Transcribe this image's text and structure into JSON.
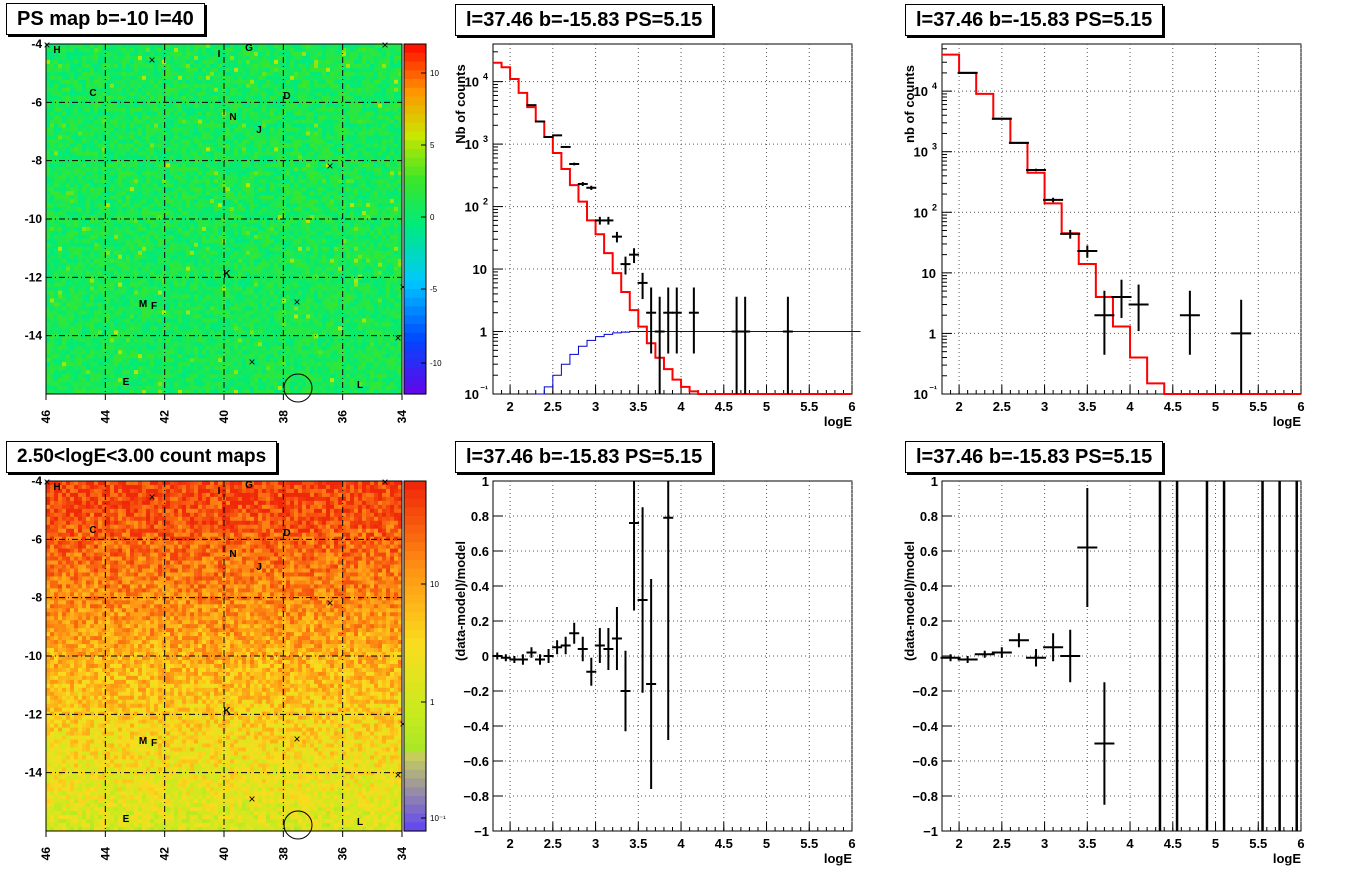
{
  "titles": {
    "map_top": "PS map b=-10 l=40",
    "map_bottom": "2.50<logE<3.00 count maps",
    "spec_left_top": "l=37.46 b=-15.83 PS=5.15",
    "spec_right_top": "l=37.46 b=-15.83 PS=5.15",
    "ratio_left": "l=37.46 b=-15.83 PS=5.15",
    "ratio_right": "l=37.46 b=-15.83 PS=5.15"
  },
  "maps": {
    "x_ticks": [
      "46",
      "44",
      "42",
      "40",
      "38",
      "36",
      "34"
    ],
    "y_ticks": [
      "-4",
      "-6",
      "-8",
      "-10",
      "-12",
      "-14"
    ],
    "source_labels": [
      "H",
      "G",
      "I",
      "C",
      "D",
      "N",
      "J",
      "K",
      "M",
      "F",
      "E",
      "L"
    ],
    "ps_colorbar_ticks": [
      "10",
      "5",
      "0",
      "-5",
      "-10"
    ],
    "count_colorbar_ticks": [
      "10",
      "1",
      "10⁻¹"
    ]
  },
  "axes": {
    "logE": "logE",
    "nb_counts": "Nb of counts",
    "nb_counts_lower": "nb of counts",
    "ratio": "(data-model)/model"
  },
  "colors": {
    "model": "#ff0000",
    "model_right_data": "#0000cc",
    "data": "#000000"
  },
  "chart_data": [
    {
      "type": "heatmap",
      "title": "PS map b=-10 l=40",
      "xlim": [
        46,
        34
      ],
      "ylim": [
        -16,
        -4
      ],
      "colorbar": [
        -12,
        12
      ]
    },
    {
      "type": "heatmap",
      "title": "2.50<logE<3.00 count maps",
      "xlim": [
        46,
        34
      ],
      "ylim": [
        -16,
        -4
      ],
      "colorbar_log": true
    },
    {
      "type": "line",
      "title": "l=37.46 b=-15.83 PS=5.15",
      "xlabel": "logE",
      "ylabel": "Nb of counts",
      "xlim": [
        1.8,
        6
      ],
      "ylim_log": [
        0.1,
        40000
      ],
      "series": [
        {
          "name": "model",
          "x": [
            1.8,
            1.9,
            2.0,
            2.1,
            2.2,
            2.3,
            2.4,
            2.5,
            2.6,
            2.7,
            2.8,
            2.9,
            3.0,
            3.1,
            3.2,
            3.3,
            3.4,
            3.5,
            3.6,
            3.7,
            3.8,
            3.9,
            4.0,
            4.1,
            4.2,
            4.3
          ],
          "y": [
            20000,
            17000,
            11000,
            6600,
            3900,
            2300,
            1300,
            720,
            400,
            220,
            120,
            60,
            36,
            18,
            8.6,
            4.3,
            2.2,
            1.2,
            0.65,
            0.38,
            0.25,
            0.17,
            0.13,
            0.11,
            0.1,
            0.1
          ]
        },
        {
          "name": "data",
          "x": [
            2.25,
            2.35,
            2.45,
            2.55,
            2.65,
            2.75,
            2.85,
            2.95,
            3.05,
            3.15,
            3.25,
            3.35,
            3.45,
            3.55,
            3.65,
            3.75,
            3.85,
            3.95,
            4.15,
            4.65,
            4.75,
            5.25
          ],
          "y": [
            4200,
            2300,
            1300,
            1380,
            900,
            480,
            230,
            200,
            60,
            60,
            33,
            12,
            17,
            6,
            2,
            1,
            2,
            2,
            2,
            1,
            1,
            1
          ]
        },
        {
          "name": "exposure",
          "x": [
            2.3,
            2.4,
            2.5,
            2.6,
            2.7,
            2.8,
            2.9,
            3.0,
            3.1,
            3.2,
            3.3,
            3.4,
            3.5,
            6.0
          ],
          "y": [
            0.1,
            0.13,
            0.2,
            0.3,
            0.43,
            0.58,
            0.72,
            0.83,
            0.9,
            0.95,
            0.98,
            1.0,
            1.0,
            1.0
          ]
        }
      ]
    },
    {
      "type": "line",
      "title": "l=37.46 b=-15.83 PS=5.15",
      "xlabel": "logE",
      "ylabel": "nb of counts",
      "xlim": [
        1.8,
        6
      ],
      "ylim_log": [
        0.1,
        60000
      ],
      "series": [
        {
          "name": "model",
          "x": [
            1.8,
            2.0,
            2.2,
            2.4,
            2.6,
            2.8,
            3.0,
            3.2,
            3.4,
            3.6,
            3.8,
            4.0,
            4.2,
            4.4
          ],
          "y": [
            40000,
            20000,
            9000,
            3500,
            1400,
            450,
            140,
            45,
            14,
            4,
            1.3,
            0.4,
            0.15,
            0.1
          ]
        },
        {
          "name": "data",
          "x": [
            2.1,
            2.5,
            2.7,
            2.9,
            3.1,
            3.3,
            3.5,
            3.7,
            3.9,
            4.1,
            4.7,
            5.3
          ],
          "y": [
            20000,
            3500,
            1400,
            500,
            160,
            44,
            23,
            2,
            4,
            3,
            2,
            1
          ]
        }
      ]
    },
    {
      "type": "scatter",
      "title": "l=37.46 b=-15.83 PS=5.15",
      "xlabel": "logE",
      "ylabel": "(data-model)/model",
      "xlim": [
        1.8,
        6
      ],
      "ylim": [
        -1,
        1
      ],
      "x": [
        1.85,
        1.95,
        2.05,
        2.15,
        2.25,
        2.35,
        2.45,
        2.55,
        2.65,
        2.75,
        2.85,
        2.95,
        3.05,
        3.15,
        3.25,
        3.35,
        3.45,
        3.55,
        3.65,
        3.85
      ],
      "y": [
        0.0,
        -0.01,
        -0.02,
        -0.02,
        0.02,
        -0.02,
        0.0,
        0.05,
        0.06,
        0.13,
        0.04,
        -0.09,
        0.06,
        0.04,
        0.1,
        -0.2,
        0.76,
        0.32,
        -0.16,
        0.79
      ]
    },
    {
      "type": "scatter",
      "title": "l=37.46 b=-15.83 PS=5.15",
      "xlabel": "logE",
      "ylabel": "(data-model)/model",
      "xlim": [
        1.8,
        6
      ],
      "ylim": [
        -1,
        1
      ],
      "x": [
        1.9,
        2.1,
        2.3,
        2.5,
        2.7,
        2.9,
        3.1,
        3.3,
        3.5,
        3.7
      ],
      "y": [
        -0.01,
        -0.02,
        0.01,
        0.02,
        0.09,
        -0.01,
        0.05,
        0.0,
        0.62,
        -0.5
      ]
    }
  ]
}
